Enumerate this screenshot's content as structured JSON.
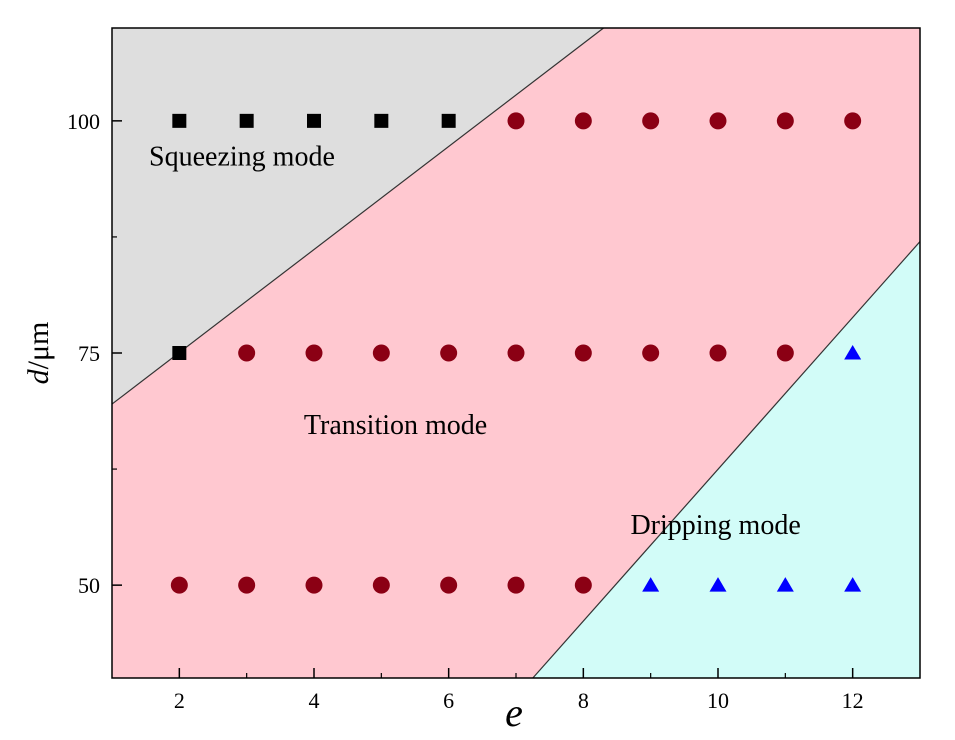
{
  "chart_data": {
    "type": "scatter",
    "xlabel": "e",
    "ylabel_symbol": "d",
    "ylabel_unit": "/μm",
    "xlim": [
      1,
      13
    ],
    "ylim": [
      40,
      110
    ],
    "xticks": [
      2,
      4,
      6,
      8,
      10,
      12
    ],
    "xticks_minor": [
      3,
      5,
      7,
      9,
      11
    ],
    "yticks": [
      50,
      75,
      100
    ],
    "yticks_minor": [
      62.5,
      87.5
    ],
    "grid": false,
    "regions": [
      {
        "label": "Squeezing mode",
        "color": "#dedede"
      },
      {
        "label": "Transition mode",
        "color": "#ffc8d0"
      },
      {
        "label": "Dripping mode",
        "color": "#d2fcf8"
      }
    ],
    "boundaries": [
      {
        "from": [
          1,
          69.5
        ],
        "to": [
          8.3,
          110
        ]
      },
      {
        "from": [
          7.25,
          40
        ],
        "to": [
          13,
          87
        ]
      }
    ],
    "series": [
      {
        "marker": "square",
        "color": "#000000",
        "points": [
          [
            2,
            100
          ],
          [
            3,
            100
          ],
          [
            4,
            100
          ],
          [
            5,
            100
          ],
          [
            6,
            100
          ],
          [
            2,
            75
          ]
        ]
      },
      {
        "marker": "circle",
        "color": "#8b0014",
        "points": [
          [
            7,
            100
          ],
          [
            8,
            100
          ],
          [
            9,
            100
          ],
          [
            10,
            100
          ],
          [
            11,
            100
          ],
          [
            12,
            100
          ],
          [
            3,
            75
          ],
          [
            4,
            75
          ],
          [
            5,
            75
          ],
          [
            6,
            75
          ],
          [
            7,
            75
          ],
          [
            8,
            75
          ],
          [
            9,
            75
          ],
          [
            10,
            75
          ],
          [
            11,
            75
          ],
          [
            2,
            50
          ],
          [
            3,
            50
          ],
          [
            4,
            50
          ],
          [
            5,
            50
          ],
          [
            6,
            50
          ],
          [
            7,
            50
          ],
          [
            8,
            50
          ]
        ]
      },
      {
        "marker": "triangle",
        "color": "#0000ff",
        "points": [
          [
            12,
            75
          ],
          [
            9,
            50
          ],
          [
            10,
            50
          ],
          [
            11,
            50
          ],
          [
            12,
            50
          ]
        ]
      }
    ],
    "annotations": [
      {
        "text": "Squeezing mode",
        "x": 1.55,
        "y": 95.2
      },
      {
        "text": "Transition mode",
        "x": 3.85,
        "y": 66.3
      },
      {
        "text": "Dripping mode",
        "x": 8.7,
        "y": 55.5
      }
    ]
  }
}
